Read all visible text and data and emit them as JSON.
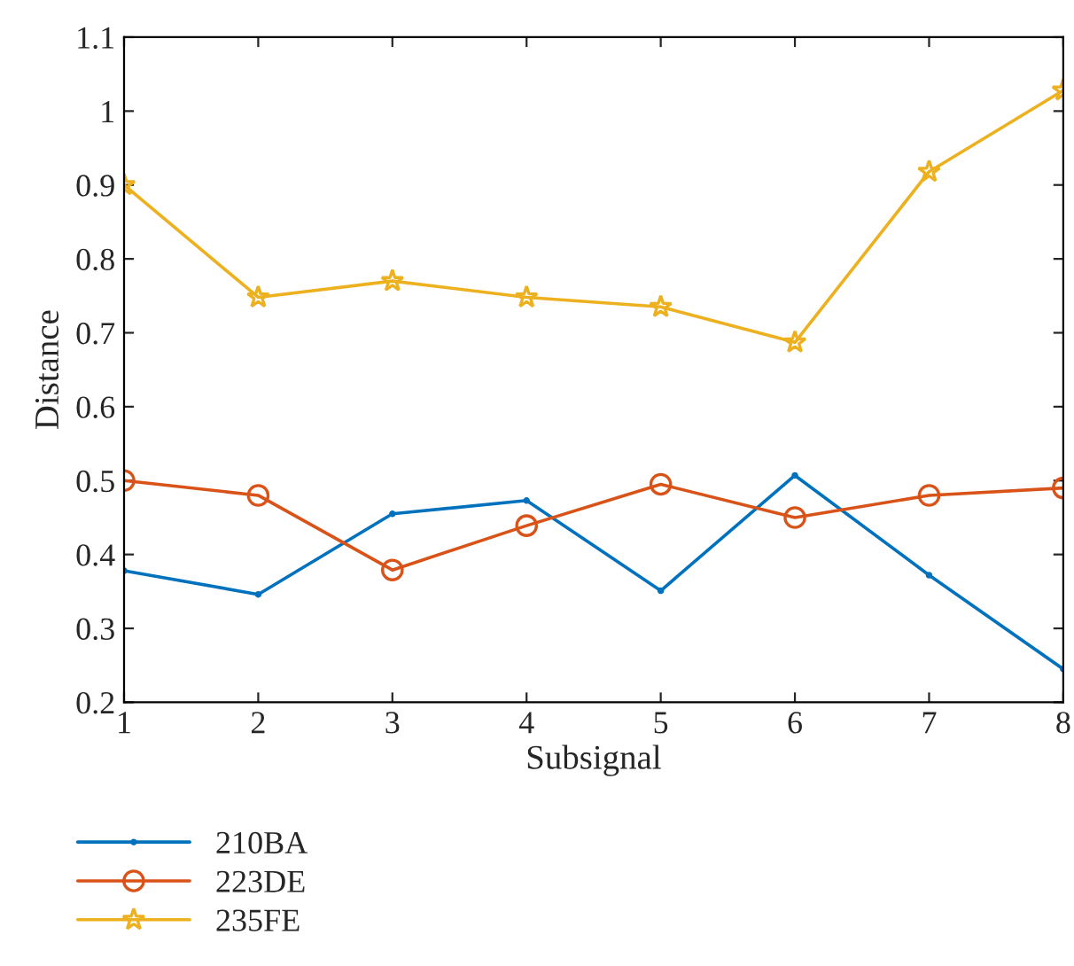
{
  "chart_data": {
    "type": "line",
    "xlabel": "Subsignal",
    "ylabel": "Distance",
    "x": [
      1,
      2,
      3,
      4,
      5,
      6,
      7,
      8
    ],
    "xlim": [
      1,
      8
    ],
    "xticks": [
      1,
      2,
      3,
      4,
      5,
      6,
      7,
      8
    ],
    "ylim": [
      0.2,
      1.1
    ],
    "yticks": [
      0.2,
      0.3,
      0.4,
      0.5,
      0.6,
      0.7,
      0.8,
      0.9,
      1,
      1.1
    ],
    "grid": false,
    "legend": "bottom left",
    "line_style": "solid",
    "series": [
      {
        "name": "210BA",
        "color": "#0072bd",
        "marker": "point",
        "values": [
          0.378,
          0.346,
          0.455,
          0.473,
          0.351,
          0.507,
          0.372,
          0.245
        ]
      },
      {
        "name": "223DE",
        "color": "#d95319",
        "marker": "circle",
        "values": [
          0.5,
          0.48,
          0.379,
          0.439,
          0.495,
          0.45,
          0.48,
          0.49
        ]
      },
      {
        "name": "235FE",
        "color": "#edb120",
        "marker": "star",
        "values": [
          0.9,
          0.748,
          0.77,
          0.748,
          0.735,
          0.687,
          0.918,
          1.028
        ]
      }
    ]
  }
}
